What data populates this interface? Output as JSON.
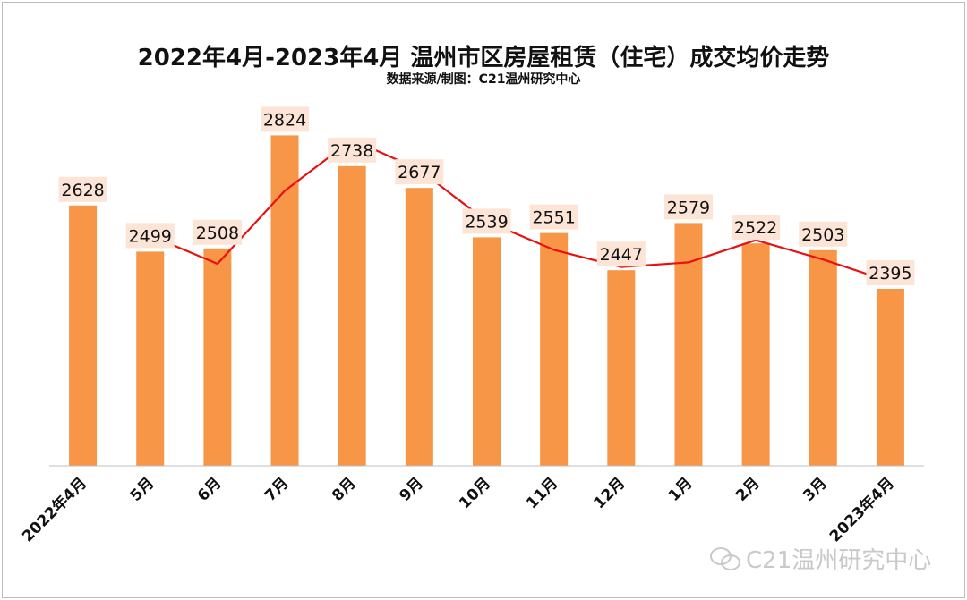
{
  "title": "2022年4月-2023年4月 温州市区房屋租赁（住宅）成交均价走势",
  "subtitle": "数据来源/制图：C21温州研究中心",
  "watermark": {
    "icon": "wechat-icon",
    "text": "C21温州研究中心"
  },
  "colors": {
    "bar": "#F79646",
    "line": "#E81010",
    "label_bg": "#FCE4D6",
    "axis": "#BFBFBF"
  },
  "chart_data": {
    "type": "bar",
    "categories": [
      "2022年4月",
      "5月",
      "6月",
      "7月",
      "8月",
      "9月",
      "10月",
      "11月",
      "12月",
      "1月",
      "2月",
      "3月",
      "2023年4月"
    ],
    "values": [
      2628,
      2499,
      2508,
      2824,
      2738,
      2677,
      2539,
      2551,
      2447,
      2579,
      2522,
      2503,
      2395
    ],
    "ylim": [
      1900,
      2900
    ],
    "trend_line": {
      "type": "line",
      "from_index": 1,
      "values": [
        2544,
        2465,
        2669,
        2812,
        2728,
        2584,
        2504,
        2456,
        2469,
        2531,
        2477,
        2415
      ]
    },
    "grid": false,
    "legend": "none",
    "data_labels": true
  }
}
